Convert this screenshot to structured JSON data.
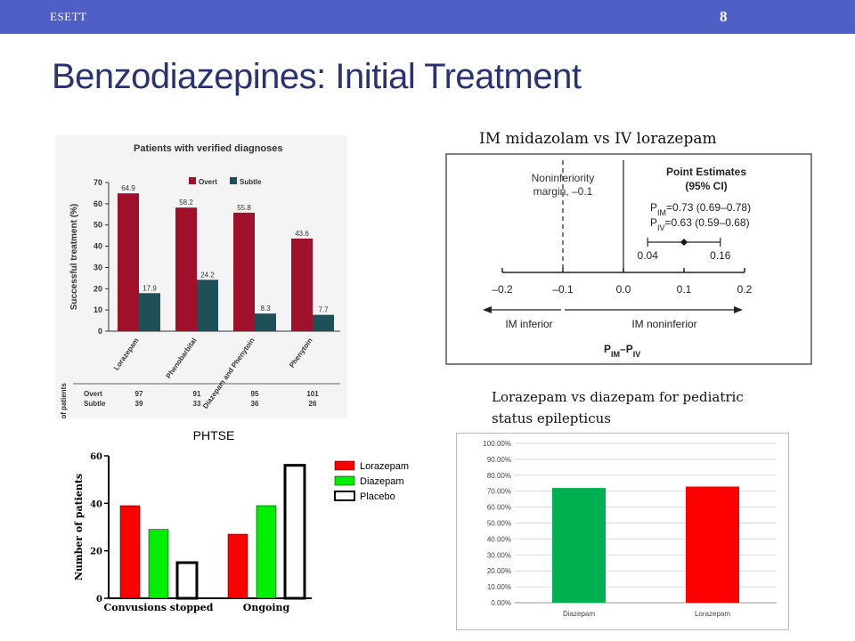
{
  "header": {
    "brand": "ESETT",
    "page_number": "8",
    "bar_color": "#4f5fc6"
  },
  "slide": {
    "title": "Benzodiazepines: Initial Treatment",
    "caption_midazolam": "IM midazolam vs IV lorazepam",
    "caption_pediatric": "Lorazepam vs diazepam for pediatric status epilepticus"
  },
  "chart_data": [
    {
      "id": "verified",
      "type": "bar",
      "title": "Patients with verified diagnoses",
      "ylabel": "Successful treatment (%)",
      "ylim": [
        0,
        70
      ],
      "yticks": [
        0,
        10,
        20,
        30,
        40,
        50,
        60,
        70
      ],
      "categories": [
        "Lorazepam",
        "Phenobarbital",
        "Diazepam and Phenytoin",
        "Phenytoin"
      ],
      "series": [
        {
          "name": "Overt",
          "color": "#a0102a",
          "values": [
            64.9,
            58.2,
            55.8,
            43.6
          ]
        },
        {
          "name": "Subtle",
          "color": "#1f5058",
          "values": [
            17.9,
            24.2,
            8.3,
            7.7
          ]
        }
      ],
      "legend_position": "top",
      "table": {
        "header": "No. of patients",
        "rows": [
          {
            "label": "Overt",
            "values": [
              "97",
              "91",
              "95",
              "101"
            ]
          },
          {
            "label": "Subtle",
            "values": [
              "39",
              "33",
              "36",
              "26"
            ]
          }
        ]
      }
    },
    {
      "id": "phtse",
      "type": "bar",
      "title": "PHTSE",
      "ylabel": "Number of patients",
      "ylim": [
        0,
        60
      ],
      "yticks": [
        0,
        20,
        40,
        60
      ],
      "categories": [
        "Convusions stopped",
        "Ongoing"
      ],
      "series": [
        {
          "name": "Lorazepam",
          "color": "#ff0000",
          "values": [
            39,
            27
          ]
        },
        {
          "name": "Diazepam",
          "color": "#00ee00",
          "values": [
            29,
            39
          ]
        },
        {
          "name": "Placebo",
          "color": "#ffffff",
          "values": [
            15,
            56
          ]
        }
      ],
      "legend_position": "right"
    },
    {
      "id": "noninferiority",
      "type": "scatter",
      "xlabel_main": "P",
      "xlabel_sub1": "IM",
      "xlabel_mid": "–P",
      "xlabel_sub2": "IV",
      "xlim": [
        -0.2,
        0.2
      ],
      "xticks": [
        "–0.2",
        "–0.1",
        "0.0",
        "0.1",
        "0.2"
      ],
      "point": {
        "x": 0.1,
        "ci": [
          0.04,
          0.16
        ],
        "ci_labels": [
          "0.04",
          "0.16"
        ]
      },
      "margin": {
        "x": -0.1,
        "label_line1": "Noninferiority",
        "label_line2": "margin, –0.1"
      },
      "estimates": {
        "heading1": "Point Estimates",
        "heading2": "(95% CI)",
        "im_sub": "IM",
        "im_text": "=0.73 (0.69–0.78)",
        "iv_sub": "IV",
        "iv_text": "=0.63 (0.59–0.68)",
        "p": "P"
      },
      "arrow_left": "IM inferior",
      "arrow_right": "IM noninferior"
    },
    {
      "id": "pediatric",
      "type": "bar",
      "ylim": [
        0,
        100
      ],
      "yticks": [
        "0.00%",
        "10.00%",
        "20.00%",
        "30.00%",
        "40.00%",
        "50.00%",
        "60.00%",
        "70.00%",
        "80.00%",
        "90.00%",
        "100.00%"
      ],
      "categories": [
        "Diazepam",
        "Lorazepam"
      ],
      "values": [
        72.0,
        72.9
      ],
      "colors": [
        "#00b050",
        "#ff0000"
      ],
      "grid": true
    }
  ]
}
